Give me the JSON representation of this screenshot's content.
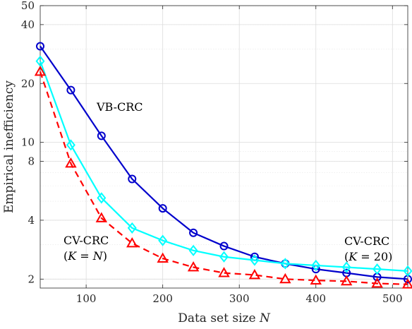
{
  "chart_data": {
    "type": "line",
    "xlabel": "Data set size N",
    "ylabel": "Empirical inefficiency",
    "xlim": [
      40,
      520
    ],
    "ylim": [
      1.8,
      50
    ],
    "yscale": "log",
    "grid": true,
    "xticks": [
      100,
      200,
      300,
      400,
      500
    ],
    "yticks": [
      2,
      4,
      8,
      10,
      20,
      40,
      50
    ],
    "x": [
      40,
      80,
      120,
      160,
      200,
      240,
      280,
      320,
      360,
      400,
      440,
      480,
      520
    ],
    "series": [
      {
        "id": "vb",
        "values": [
          31,
          18.5,
          10.8,
          6.5,
          4.6,
          3.45,
          2.95,
          2.6,
          2.4,
          2.25,
          2.15,
          2.05,
          2.0
        ],
        "color": "#0000CC",
        "marker": "circle",
        "dash": "solid"
      },
      {
        "id": "cv-k20",
        "values": [
          26,
          9.7,
          5.2,
          3.65,
          3.15,
          2.8,
          2.6,
          2.5,
          2.4,
          2.35,
          2.3,
          2.25,
          2.2
        ],
        "color": "#00FFFF",
        "marker": "diamond",
        "dash": "solid"
      },
      {
        "id": "cv-kn",
        "values": [
          23,
          7.8,
          4.1,
          3.05,
          2.55,
          2.3,
          2.15,
          2.1,
          2.0,
          1.97,
          1.95,
          1.9,
          1.88
        ],
        "color": "#FF0000",
        "marker": "triangle",
        "dash": "dashed"
      }
    ],
    "annotations": [
      {
        "id": "vb-label",
        "lines": [
          "VB-CRC"
        ]
      },
      {
        "id": "cvn-label",
        "lines": [
          "CV-CRC",
          "(K = N)"
        ]
      },
      {
        "id": "cv20-label",
        "lines": [
          "CV-CRC",
          "(K = 20)"
        ]
      }
    ]
  }
}
